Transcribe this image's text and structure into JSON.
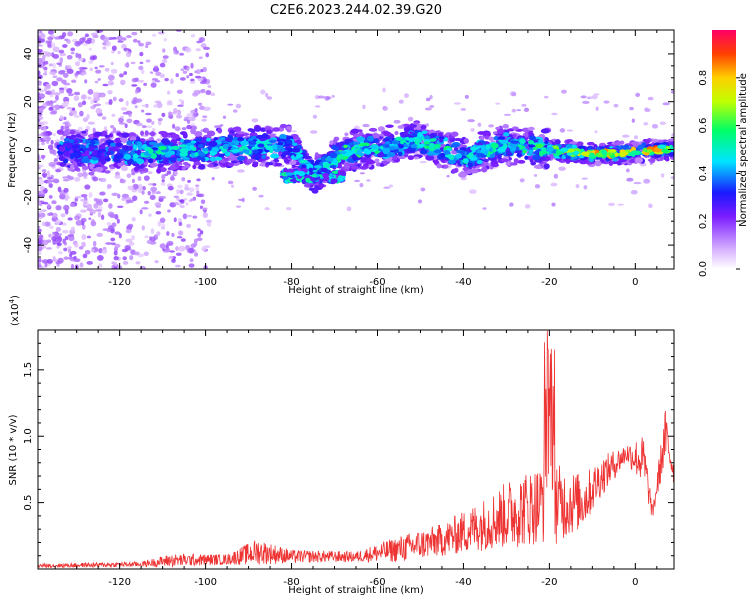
{
  "figure": {
    "title": "C2E6.2023.244.02.39.G20"
  },
  "chart_data": [
    {
      "type": "heatmap",
      "xlabel": "Height of straight line (km)",
      "ylabel": "Frequency (Hz)",
      "xlim": [
        -139,
        9
      ],
      "ylim": [
        -50,
        50
      ],
      "xticks": [
        -120,
        -100,
        -80,
        -60,
        -40,
        -20,
        0
      ],
      "yticks": [
        -40,
        -20,
        0,
        20,
        40
      ],
      "colorbar": {
        "label": "Normalized spectral amplitude",
        "range": [
          0,
          1
        ],
        "ticks": [
          "0.0",
          "0.2",
          "0.4",
          "0.6",
          "0.8"
        ]
      },
      "ridge": [
        {
          "x": -139,
          "freq": 0,
          "amp": 0.3
        },
        {
          "x": -120,
          "freq": -1,
          "amp": 0.4
        },
        {
          "x": -110,
          "freq": -1,
          "amp": 0.55
        },
        {
          "x": -100,
          "freq": 0,
          "amp": 0.5
        },
        {
          "x": -90,
          "freq": 1,
          "amp": 0.5
        },
        {
          "x": -80,
          "freq": 2,
          "amp": 0.45
        },
        {
          "x": -75,
          "freq": -11,
          "amp": 0.5
        },
        {
          "x": -68,
          "freq": -1,
          "amp": 0.6
        },
        {
          "x": -60,
          "freq": 1,
          "amp": 0.55
        },
        {
          "x": -50,
          "freq": 4,
          "amp": 0.55
        },
        {
          "x": -40,
          "freq": -3,
          "amp": 0.55
        },
        {
          "x": -30,
          "freq": 2,
          "amp": 0.55
        },
        {
          "x": -20,
          "freq": 0,
          "amp": 0.6
        },
        {
          "x": -15,
          "freq": -1,
          "amp": 0.7
        },
        {
          "x": -10,
          "freq": -2,
          "amp": 0.85
        },
        {
          "x": 0,
          "freq": -1,
          "amp": 0.8
        },
        {
          "x": 5,
          "freq": 0,
          "amp": 0.9
        },
        {
          "x": 8,
          "freq": 0,
          "amp": 0.6
        }
      ]
    },
    {
      "type": "line",
      "xlabel": "Height of straight line (km)",
      "ylabel": "SNR (10 * v/v)",
      "y_multiplier": "(x10",
      "y_multiplier_exp": "4",
      "y_multiplier_close": ")",
      "xlim": [
        -139,
        9
      ],
      "ylim": [
        0,
        1.8
      ],
      "xticks": [
        -120,
        -100,
        -80,
        -60,
        -40,
        -20,
        0
      ],
      "yticks": [
        "0.5",
        "1.0",
        "1.5"
      ],
      "series": [
        {
          "color": "#ee3333",
          "envelope": [
            {
              "x": -139,
              "base": 0.02,
              "spread": 0.03
            },
            {
              "x": -115,
              "base": 0.03,
              "spread": 0.04
            },
            {
              "x": -108,
              "base": 0.05,
              "spread": 0.1
            },
            {
              "x": -95,
              "base": 0.06,
              "spread": 0.08
            },
            {
              "x": -88,
              "base": 0.1,
              "spread": 0.2
            },
            {
              "x": -80,
              "base": 0.08,
              "spread": 0.1
            },
            {
              "x": -65,
              "base": 0.08,
              "spread": 0.08
            },
            {
              "x": -55,
              "base": 0.12,
              "spread": 0.2
            },
            {
              "x": -45,
              "base": 0.18,
              "spread": 0.25
            },
            {
              "x": -35,
              "base": 0.28,
              "spread": 0.4
            },
            {
              "x": -28,
              "base": 0.35,
              "spread": 0.55
            },
            {
              "x": -22,
              "base": 0.4,
              "spread": 0.6
            },
            {
              "x": -20,
              "base": 0.6,
              "spread": 1.2
            },
            {
              "x": -18,
              "base": 0.4,
              "spread": 0.6
            },
            {
              "x": -12,
              "base": 0.45,
              "spread": 0.4
            },
            {
              "x": -8,
              "base": 0.65,
              "spread": 0.3
            },
            {
              "x": -2,
              "base": 0.85,
              "spread": 0.15
            },
            {
              "x": 2,
              "base": 0.75,
              "spread": 0.4
            },
            {
              "x": 4,
              "base": 0.4,
              "spread": 0.1
            },
            {
              "x": 7,
              "base": 0.95,
              "spread": 0.4
            },
            {
              "x": 9,
              "base": 0.7,
              "spread": 0.2
            }
          ]
        }
      ]
    }
  ]
}
